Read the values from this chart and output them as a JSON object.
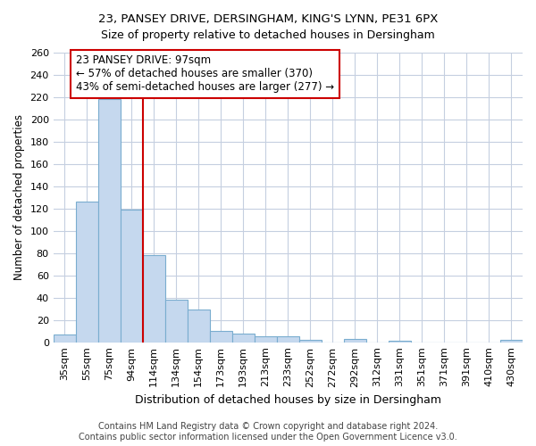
{
  "title": "23, PANSEY DRIVE, DERSINGHAM, KING'S LYNN, PE31 6PX",
  "subtitle": "Size of property relative to detached houses in Dersingham",
  "xlabel": "Distribution of detached houses by size in Dersingham",
  "ylabel": "Number of detached properties",
  "categories": [
    "35sqm",
    "55sqm",
    "75sqm",
    "94sqm",
    "114sqm",
    "134sqm",
    "154sqm",
    "173sqm",
    "193sqm",
    "213sqm",
    "233sqm",
    "252sqm",
    "272sqm",
    "292sqm",
    "312sqm",
    "331sqm",
    "351sqm",
    "371sqm",
    "391sqm",
    "410sqm",
    "430sqm"
  ],
  "values": [
    7,
    126,
    218,
    119,
    78,
    38,
    29,
    10,
    8,
    5,
    5,
    2,
    0,
    3,
    0,
    1,
    0,
    0,
    0,
    0,
    2
  ],
  "bar_color": "#c5d8ee",
  "bar_edge_color": "#7aadcf",
  "bar_linewidth": 0.8,
  "vline_idx": 3,
  "vline_color": "#cc0000",
  "annotation_line1": "23 PANSEY DRIVE: 97sqm",
  "annotation_line2": "← 57% of detached houses are smaller (370)",
  "annotation_line3": "43% of semi-detached houses are larger (277) →",
  "annotation_box_color": "#ffffff",
  "annotation_box_edge": "#cc0000",
  "footer1": "Contains HM Land Registry data © Crown copyright and database right 2024.",
  "footer2": "Contains public sector information licensed under the Open Government Licence v3.0.",
  "ylim": [
    0,
    260
  ],
  "yticks": [
    0,
    20,
    40,
    60,
    80,
    100,
    120,
    140,
    160,
    180,
    200,
    220,
    240,
    260
  ],
  "bg_color": "#ffffff",
  "grid_color": "#c5cfe0",
  "title_fontsize": 9.5,
  "xlabel_fontsize": 9,
  "ylabel_fontsize": 8.5,
  "tick_fontsize": 8,
  "annotation_fontsize": 8.5,
  "footer_fontsize": 7
}
